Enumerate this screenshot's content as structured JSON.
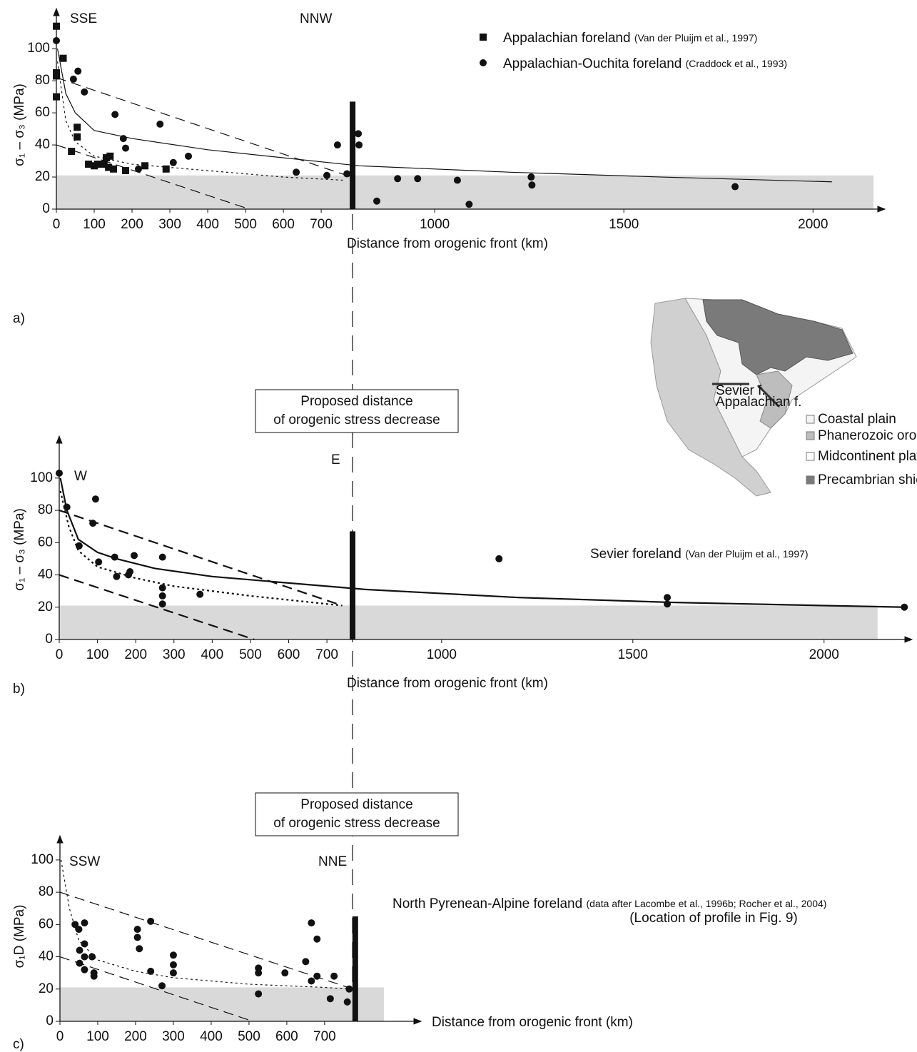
{
  "chart_data": [
    {
      "type": "scatter",
      "panel": "a)",
      "xlabel": "Distance from orogenic front (km)",
      "ylabel": "σ₁ – σ₃ (MPa)",
      "labels": [
        "SSE",
        "NNW"
      ],
      "xlim": [
        0,
        2190
      ],
      "ylim": [
        0,
        125
      ],
      "xticks": [
        0,
        100,
        200,
        300,
        400,
        500,
        600,
        700,
        1000,
        1500,
        2000
      ],
      "yticks": [
        0,
        20,
        40,
        60,
        80,
        100
      ],
      "band": {
        "xmax": 2160,
        "ymax": 21
      },
      "front_bar": {
        "x": 783,
        "ymax": 67
      },
      "line_width": 1.2,
      "legend_markers": true,
      "series": [
        {
          "name": "Appalachian foreland",
          "note": "(Van der Pluijm et al., 1997)",
          "marker": "square",
          "color": "#111111",
          "x": [
            0,
            0,
            0,
            0,
            18,
            55,
            55,
            40,
            85,
            100,
            109,
            126,
            132,
            138,
            142,
            151,
            183,
            234,
            290
          ],
          "values": [
            114,
            85,
            83,
            70,
            94,
            51,
            45,
            36,
            28,
            27,
            28,
            28,
            32,
            26,
            33,
            25,
            24,
            27,
            25
          ]
        },
        {
          "name": "Appalachian-Ouchita foreland",
          "note": "(Craddock et al., 1993)",
          "marker": "circle",
          "color": "#111111",
          "x": [
            0,
            45,
            57,
            74,
            155,
            177,
            183,
            274,
            309,
            217,
            349,
            634,
            715,
            743,
            768,
            798,
            800,
            847,
            902,
            955,
            1060,
            1091,
            1255,
            1257,
            1794
          ],
          "values": [
            105,
            81,
            86,
            73,
            59,
            44,
            38,
            53,
            29,
            25,
            33,
            23,
            21,
            40,
            22,
            47,
            40,
            5,
            19,
            19,
            18,
            3,
            20,
            15,
            14
          ]
        }
      ],
      "lines": [
        {
          "style": "solid",
          "x": [
            3,
            25,
            50,
            100,
            200,
            400,
            800,
            1200,
            1600,
            2050
          ],
          "values": [
            100,
            72,
            60,
            49,
            44,
            37,
            27,
            23,
            20,
            17
          ]
        },
        {
          "style": "dotted",
          "x": [
            3,
            25,
            50,
            100,
            200,
            400,
            600,
            760
          ],
          "values": [
            92,
            55,
            42,
            33,
            28,
            24,
            20,
            18
          ]
        },
        {
          "style": "dashed",
          "x": [
            0,
            780
          ],
          "values": [
            82,
            20
          ]
        },
        {
          "style": "dashed",
          "x": [
            0,
            510
          ],
          "values": [
            40,
            0
          ]
        }
      ]
    },
    {
      "type": "scatter",
      "panel": "b)",
      "xlabel": "Distance from orogenic front (km)",
      "ylabel": "σ₁ – σ₃ (MPa)",
      "labels": [
        "W",
        "E"
      ],
      "xlim": [
        0,
        2230
      ],
      "ylim": [
        0,
        126
      ],
      "xticks": [
        0,
        100,
        200,
        300,
        400,
        500,
        600,
        700,
        1000,
        1500,
        2000
      ],
      "yticks": [
        0,
        20,
        40,
        60,
        80,
        100
      ],
      "band": {
        "xmax": 2140,
        "ymax": 21
      },
      "front_bar": {
        "x": 767,
        "ymax": 67
      },
      "line_width": 2.2,
      "legend_markers": false,
      "series": [
        {
          "name": "Sevier foreland",
          "note": "(Van der Pluijm et al., 1997)",
          "marker": "circle",
          "color": "#111111",
          "x": [
            0,
            20,
            95,
            88,
            52,
            103,
            145,
            196,
            185,
            181,
            150,
            270,
            270,
            270,
            270,
            368,
            1150,
            1590,
            1590,
            2210
          ],
          "values": [
            103,
            82,
            87,
            72,
            58,
            48,
            51,
            52,
            42,
            40,
            39,
            51,
            32,
            27,
            22,
            28,
            50,
            26,
            22,
            20
          ]
        }
      ],
      "lines": [
        {
          "style": "solid",
          "x": [
            3,
            20,
            50,
            100,
            150,
            250,
            400,
            800,
            1200,
            1600,
            2000,
            2210
          ],
          "values": [
            100,
            80,
            62,
            54,
            50,
            44,
            39,
            31,
            26,
            23,
            21,
            20
          ]
        },
        {
          "style": "dotted",
          "x": [
            3,
            25,
            50,
            100,
            200,
            300,
            500,
            740
          ],
          "values": [
            92,
            70,
            55,
            45,
            38,
            33,
            27,
            21
          ]
        },
        {
          "style": "dashed",
          "x": [
            0,
            740
          ],
          "values": [
            80,
            21
          ]
        },
        {
          "style": "dashed",
          "x": [
            0,
            510
          ],
          "values": [
            40,
            0
          ]
        }
      ]
    },
    {
      "type": "scatter",
      "panel": "c)",
      "xlabel": "Distance from orogenic front (km)",
      "ylabel": "σ₁D (MPa)",
      "labels": [
        "SSW",
        "NNE"
      ],
      "xlim": [
        0,
        955
      ],
      "ylim": [
        0,
        115
      ],
      "xticks": [
        0,
        100,
        200,
        300,
        400,
        500,
        600,
        700
      ],
      "yticks": [
        0,
        20,
        40,
        60,
        80,
        100
      ],
      "band": {
        "xmax": 857,
        "ymax": 21
      },
      "front_bar": {
        "x": 781,
        "ymax": 65
      },
      "line_width": 1.2,
      "legend_markers": false,
      "series": [
        {
          "name": "North Pyrenean-Alpine foreland",
          "note": "(data after Lacombe et al., 1996b; Rocher et al., 2004)",
          "subnote": "(Location of profile in Fig. 9)",
          "marker": "circle",
          "color": "#111111",
          "x": [
            40,
            50,
            52,
            52,
            65,
            65,
            65,
            65,
            85,
            90,
            90,
            205,
            205,
            210,
            240,
            240,
            270,
            300,
            300,
            300,
            525,
            525,
            525,
            595,
            650,
            665,
            665,
            680,
            680,
            715,
            725,
            760,
            765
          ],
          "values": [
            60,
            57,
            44,
            36,
            61,
            48,
            40,
            32,
            40,
            30,
            28,
            57,
            52,
            45,
            62,
            31,
            22,
            41,
            35,
            30,
            33,
            30,
            17,
            30,
            37,
            61,
            25,
            51,
            28,
            14,
            28,
            12,
            20
          ]
        }
      ],
      "lines": [
        {
          "style": "dotted",
          "x": [
            3,
            25,
            50,
            100,
            200,
            300,
            500,
            700,
            770
          ],
          "values": [
            100,
            70,
            50,
            38,
            31,
            27,
            23,
            21,
            20
          ]
        },
        {
          "style": "dashed",
          "x": [
            0,
            775
          ],
          "values": [
            80,
            20
          ]
        },
        {
          "style": "dashed",
          "x": [
            0,
            510
          ],
          "values": [
            40,
            0
          ]
        }
      ]
    }
  ],
  "boxes": [
    {
      "lines": [
        "Proposed distance",
        "of orogenic stress decrease"
      ]
    },
    {
      "lines": [
        "Proposed distance",
        "of orogenic stress decrease"
      ]
    }
  ],
  "map": {
    "fault_labels": [
      "Sevier f.",
      "Appalachian f."
    ],
    "legend": [
      "Coastal plain",
      "Phanerozoic orogen",
      "Midcontinent platform",
      "Precambrian shield"
    ]
  }
}
